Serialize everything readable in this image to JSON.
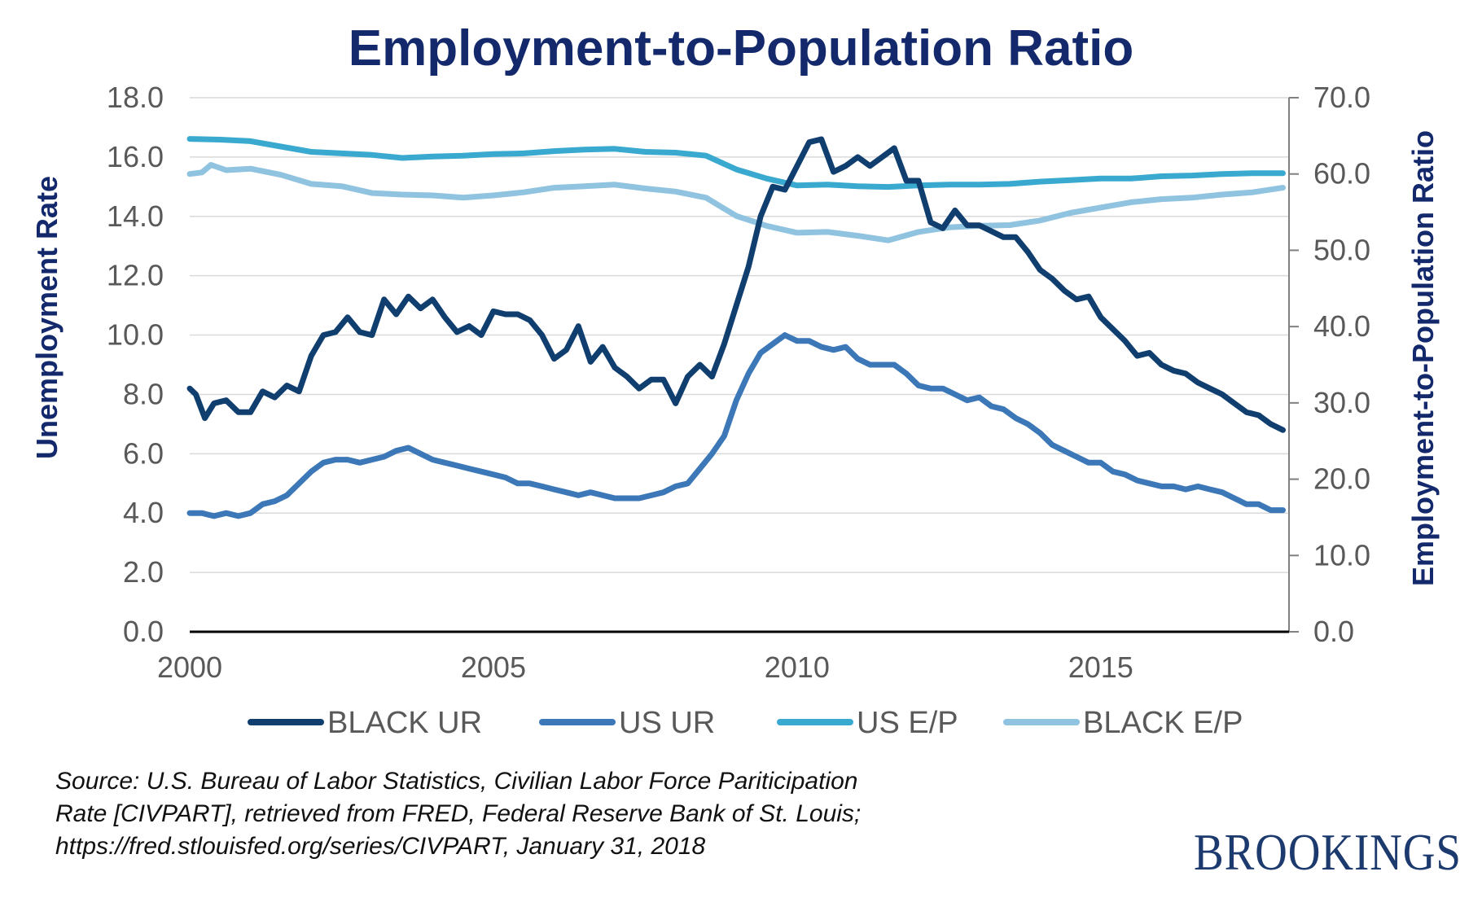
{
  "chart_data": {
    "type": "line",
    "title": "Employment-to-Population Ratio",
    "ylabel_left": "Unemployment Rate",
    "ylabel_right": "Employment-to-Population Ratio",
    "xlim": [
      2000,
      2018.1
    ],
    "ylim_left": [
      0,
      18
    ],
    "ylim_right": [
      0,
      70
    ],
    "x_ticks": [
      "2000",
      "2005",
      "2010",
      "2015"
    ],
    "y_ticks_left": [
      "0.0",
      "2.0",
      "4.0",
      "6.0",
      "8.0",
      "10.0",
      "12.0",
      "14.0",
      "16.0",
      "18.0"
    ],
    "y_ticks_right": [
      "0.0",
      "10.0",
      "20.0",
      "30.0",
      "40.0",
      "50.0",
      "60.0",
      "70.0"
    ],
    "grid": true,
    "legend_position": "bottom",
    "series": [
      {
        "name": "BLACK UR",
        "axis": "left",
        "color": "#0f3e6f",
        "points": [
          [
            2000.0,
            8.2
          ],
          [
            2000.1,
            8.0
          ],
          [
            2000.25,
            7.2
          ],
          [
            2000.4,
            7.7
          ],
          [
            2000.6,
            7.8
          ],
          [
            2000.8,
            7.4
          ],
          [
            2001.0,
            7.4
          ],
          [
            2001.2,
            8.1
          ],
          [
            2001.4,
            7.9
          ],
          [
            2001.6,
            8.3
          ],
          [
            2001.8,
            8.1
          ],
          [
            2002.0,
            9.3
          ],
          [
            2002.2,
            10.0
          ],
          [
            2002.4,
            10.1
          ],
          [
            2002.6,
            10.6
          ],
          [
            2002.8,
            10.1
          ],
          [
            2003.0,
            10.0
          ],
          [
            2003.2,
            11.2
          ],
          [
            2003.4,
            10.7
          ],
          [
            2003.6,
            11.3
          ],
          [
            2003.8,
            10.9
          ],
          [
            2004.0,
            11.2
          ],
          [
            2004.2,
            10.6
          ],
          [
            2004.4,
            10.1
          ],
          [
            2004.6,
            10.3
          ],
          [
            2004.8,
            10.0
          ],
          [
            2005.0,
            10.8
          ],
          [
            2005.2,
            10.7
          ],
          [
            2005.4,
            10.7
          ],
          [
            2005.6,
            10.5
          ],
          [
            2005.8,
            10.0
          ],
          [
            2006.0,
            9.2
          ],
          [
            2006.2,
            9.5
          ],
          [
            2006.4,
            10.3
          ],
          [
            2006.6,
            9.1
          ],
          [
            2006.8,
            9.6
          ],
          [
            2007.0,
            8.9
          ],
          [
            2007.2,
            8.6
          ],
          [
            2007.4,
            8.2
          ],
          [
            2007.6,
            8.5
          ],
          [
            2007.8,
            8.5
          ],
          [
            2008.0,
            7.7
          ],
          [
            2008.2,
            8.6
          ],
          [
            2008.4,
            9.0
          ],
          [
            2008.6,
            8.6
          ],
          [
            2008.8,
            9.7
          ],
          [
            2009.0,
            11.0
          ],
          [
            2009.2,
            12.3
          ],
          [
            2009.4,
            14.0
          ],
          [
            2009.6,
            15.0
          ],
          [
            2009.8,
            14.9
          ],
          [
            2010.0,
            15.7
          ],
          [
            2010.2,
            16.5
          ],
          [
            2010.4,
            16.6
          ],
          [
            2010.6,
            15.5
          ],
          [
            2010.8,
            15.7
          ],
          [
            2011.0,
            16.0
          ],
          [
            2011.2,
            15.7
          ],
          [
            2011.4,
            16.0
          ],
          [
            2011.6,
            16.3
          ],
          [
            2011.8,
            15.2
          ],
          [
            2012.0,
            15.2
          ],
          [
            2012.2,
            13.8
          ],
          [
            2012.4,
            13.6
          ],
          [
            2012.6,
            14.2
          ],
          [
            2012.8,
            13.7
          ],
          [
            2013.0,
            13.7
          ],
          [
            2013.2,
            13.5
          ],
          [
            2013.4,
            13.3
          ],
          [
            2013.6,
            13.3
          ],
          [
            2013.8,
            12.8
          ],
          [
            2014.0,
            12.2
          ],
          [
            2014.2,
            11.9
          ],
          [
            2014.4,
            11.5
          ],
          [
            2014.6,
            11.2
          ],
          [
            2014.8,
            11.3
          ],
          [
            2015.0,
            10.6
          ],
          [
            2015.2,
            10.2
          ],
          [
            2015.4,
            9.8
          ],
          [
            2015.6,
            9.3
          ],
          [
            2015.8,
            9.4
          ],
          [
            2016.0,
            9.0
          ],
          [
            2016.2,
            8.8
          ],
          [
            2016.4,
            8.7
          ],
          [
            2016.6,
            8.4
          ],
          [
            2016.8,
            8.2
          ],
          [
            2017.0,
            8.0
          ],
          [
            2017.2,
            7.7
          ],
          [
            2017.4,
            7.4
          ],
          [
            2017.6,
            7.3
          ],
          [
            2017.8,
            7.0
          ],
          [
            2018.0,
            6.8
          ]
        ]
      },
      {
        "name": "US UR",
        "axis": "left",
        "color": "#3c78b8",
        "points": [
          [
            2000.0,
            4.0
          ],
          [
            2000.2,
            4.0
          ],
          [
            2000.4,
            3.9
          ],
          [
            2000.6,
            4.0
          ],
          [
            2000.8,
            3.9
          ],
          [
            2001.0,
            4.0
          ],
          [
            2001.2,
            4.3
          ],
          [
            2001.4,
            4.4
          ],
          [
            2001.6,
            4.6
          ],
          [
            2001.8,
            5.0
          ],
          [
            2002.0,
            5.4
          ],
          [
            2002.2,
            5.7
          ],
          [
            2002.4,
            5.8
          ],
          [
            2002.6,
            5.8
          ],
          [
            2002.8,
            5.7
          ],
          [
            2003.0,
            5.8
          ],
          [
            2003.2,
            5.9
          ],
          [
            2003.4,
            6.1
          ],
          [
            2003.6,
            6.2
          ],
          [
            2003.8,
            6.0
          ],
          [
            2004.0,
            5.8
          ],
          [
            2004.2,
            5.7
          ],
          [
            2004.4,
            5.6
          ],
          [
            2004.6,
            5.5
          ],
          [
            2004.8,
            5.4
          ],
          [
            2005.0,
            5.3
          ],
          [
            2005.2,
            5.2
          ],
          [
            2005.4,
            5.0
          ],
          [
            2005.6,
            5.0
          ],
          [
            2005.8,
            4.9
          ],
          [
            2006.0,
            4.8
          ],
          [
            2006.2,
            4.7
          ],
          [
            2006.4,
            4.6
          ],
          [
            2006.6,
            4.7
          ],
          [
            2006.8,
            4.6
          ],
          [
            2007.0,
            4.5
          ],
          [
            2007.2,
            4.5
          ],
          [
            2007.4,
            4.5
          ],
          [
            2007.6,
            4.6
          ],
          [
            2007.8,
            4.7
          ],
          [
            2008.0,
            4.9
          ],
          [
            2008.2,
            5.0
          ],
          [
            2008.4,
            5.5
          ],
          [
            2008.6,
            6.0
          ],
          [
            2008.8,
            6.6
          ],
          [
            2009.0,
            7.8
          ],
          [
            2009.2,
            8.7
          ],
          [
            2009.4,
            9.4
          ],
          [
            2009.6,
            9.7
          ],
          [
            2009.8,
            10.0
          ],
          [
            2010.0,
            9.8
          ],
          [
            2010.2,
            9.8
          ],
          [
            2010.4,
            9.6
          ],
          [
            2010.6,
            9.5
          ],
          [
            2010.8,
            9.6
          ],
          [
            2011.0,
            9.2
          ],
          [
            2011.2,
            9.0
          ],
          [
            2011.4,
            9.0
          ],
          [
            2011.6,
            9.0
          ],
          [
            2011.8,
            8.7
          ],
          [
            2012.0,
            8.3
          ],
          [
            2012.2,
            8.2
          ],
          [
            2012.4,
            8.2
          ],
          [
            2012.6,
            8.0
          ],
          [
            2012.8,
            7.8
          ],
          [
            2013.0,
            7.9
          ],
          [
            2013.2,
            7.6
          ],
          [
            2013.4,
            7.5
          ],
          [
            2013.6,
            7.2
          ],
          [
            2013.8,
            7.0
          ],
          [
            2014.0,
            6.7
          ],
          [
            2014.2,
            6.3
          ],
          [
            2014.4,
            6.1
          ],
          [
            2014.6,
            5.9
          ],
          [
            2014.8,
            5.7
          ],
          [
            2015.0,
            5.7
          ],
          [
            2015.2,
            5.4
          ],
          [
            2015.4,
            5.3
          ],
          [
            2015.6,
            5.1
          ],
          [
            2015.8,
            5.0
          ],
          [
            2016.0,
            4.9
          ],
          [
            2016.2,
            4.9
          ],
          [
            2016.4,
            4.8
          ],
          [
            2016.6,
            4.9
          ],
          [
            2016.8,
            4.8
          ],
          [
            2017.0,
            4.7
          ],
          [
            2017.2,
            4.5
          ],
          [
            2017.4,
            4.3
          ],
          [
            2017.6,
            4.3
          ],
          [
            2017.8,
            4.1
          ],
          [
            2018.0,
            4.1
          ]
        ]
      },
      {
        "name": "US E/P",
        "axis": "right",
        "color": "#3aa9cf",
        "points": [
          [
            2000.0,
            64.6
          ],
          [
            2000.5,
            64.5
          ],
          [
            2001.0,
            64.3
          ],
          [
            2001.5,
            63.6
          ],
          [
            2002.0,
            62.9
          ],
          [
            2002.5,
            62.7
          ],
          [
            2003.0,
            62.5
          ],
          [
            2003.5,
            62.1
          ],
          [
            2004.0,
            62.3
          ],
          [
            2004.5,
            62.4
          ],
          [
            2005.0,
            62.6
          ],
          [
            2005.5,
            62.7
          ],
          [
            2006.0,
            63.0
          ],
          [
            2006.5,
            63.2
          ],
          [
            2007.0,
            63.3
          ],
          [
            2007.5,
            62.9
          ],
          [
            2008.0,
            62.8
          ],
          [
            2008.5,
            62.4
          ],
          [
            2009.0,
            60.6
          ],
          [
            2009.5,
            59.4
          ],
          [
            2010.0,
            58.5
          ],
          [
            2010.5,
            58.6
          ],
          [
            2011.0,
            58.4
          ],
          [
            2011.5,
            58.3
          ],
          [
            2012.0,
            58.5
          ],
          [
            2012.5,
            58.6
          ],
          [
            2013.0,
            58.6
          ],
          [
            2013.5,
            58.7
          ],
          [
            2014.0,
            59.0
          ],
          [
            2014.5,
            59.2
          ],
          [
            2015.0,
            59.4
          ],
          [
            2015.5,
            59.4
          ],
          [
            2016.0,
            59.7
          ],
          [
            2016.5,
            59.8
          ],
          [
            2017.0,
            60.0
          ],
          [
            2017.5,
            60.1
          ],
          [
            2018.0,
            60.1
          ]
        ]
      },
      {
        "name": "BLACK E/P",
        "axis": "right",
        "color": "#8fc3e0",
        "points": [
          [
            2000.0,
            60.0
          ],
          [
            2000.2,
            60.2
          ],
          [
            2000.35,
            61.2
          ],
          [
            2000.6,
            60.5
          ],
          [
            2001.0,
            60.7
          ],
          [
            2001.5,
            59.9
          ],
          [
            2002.0,
            58.7
          ],
          [
            2002.5,
            58.4
          ],
          [
            2003.0,
            57.5
          ],
          [
            2003.5,
            57.3
          ],
          [
            2004.0,
            57.2
          ],
          [
            2004.5,
            56.9
          ],
          [
            2005.0,
            57.2
          ],
          [
            2005.5,
            57.6
          ],
          [
            2006.0,
            58.2
          ],
          [
            2006.5,
            58.4
          ],
          [
            2007.0,
            58.6
          ],
          [
            2007.5,
            58.1
          ],
          [
            2008.0,
            57.7
          ],
          [
            2008.5,
            56.9
          ],
          [
            2009.0,
            54.5
          ],
          [
            2009.5,
            53.2
          ],
          [
            2010.0,
            52.3
          ],
          [
            2010.5,
            52.4
          ],
          [
            2011.0,
            51.9
          ],
          [
            2011.5,
            51.3
          ],
          [
            2012.0,
            52.4
          ],
          [
            2012.5,
            53.0
          ],
          [
            2013.0,
            53.2
          ],
          [
            2013.5,
            53.3
          ],
          [
            2014.0,
            53.9
          ],
          [
            2014.5,
            54.9
          ],
          [
            2015.0,
            55.6
          ],
          [
            2015.5,
            56.3
          ],
          [
            2016.0,
            56.7
          ],
          [
            2016.5,
            56.9
          ],
          [
            2017.0,
            57.3
          ],
          [
            2017.5,
            57.6
          ],
          [
            2018.0,
            58.2
          ]
        ]
      }
    ]
  },
  "footer": {
    "source_lines": [
      "Source: U.S. Bureau of Labor Statistics, Civilian Labor Force Pariticipation",
      "Rate [CIVPART], retrieved from FRED, Federal Reserve Bank of St. Louis;",
      "https://fred.stlouisfed.org/series/CIVPART, January 31, 2018"
    ],
    "logo_text": "BROOKINGS"
  }
}
